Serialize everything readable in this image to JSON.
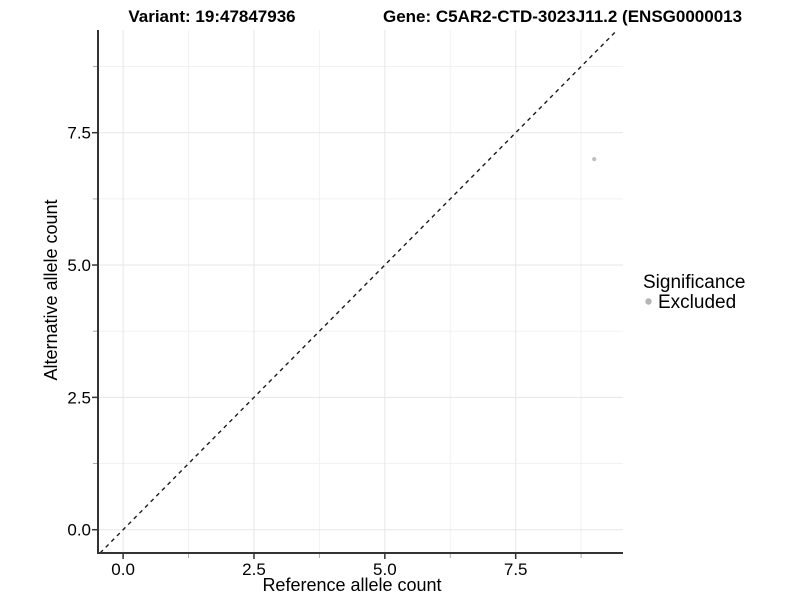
{
  "chart_data": {
    "type": "scatter",
    "titles": {
      "variant": "Variant: 19:47847936",
      "gene": "Gene: C5AR2-CTD-3023J11.2 (ENSG0000013"
    },
    "xlabel": "Reference allele count",
    "ylabel": "Alternative allele count",
    "xlim": [
      -0.48,
      9.55
    ],
    "ylim": [
      -0.44,
      9.44
    ],
    "x_ticks": [
      0,
      2.5,
      5,
      7.5
    ],
    "x_tick_labels": [
      "0.0",
      "2.5",
      "5.0",
      "7.5"
    ],
    "y_ticks": [
      0,
      2.5,
      5,
      7.5
    ],
    "y_tick_labels": [
      "0.0",
      "2.5",
      "5.0",
      "7.5"
    ],
    "minor_ticks": [
      1.25,
      3.75,
      6.25,
      8.75
    ],
    "grid": {
      "show": true,
      "major_color": "#e7e7e7",
      "minor_color": "#f2f2f2"
    },
    "identity_line": {
      "style": "dashed",
      "color": "#1a1a1a",
      "from": -0.44,
      "to": 9.44
    },
    "series": [
      {
        "name": "Excluded",
        "color": "#c0c0c0",
        "point_radius": 2.1,
        "points": [
          [
            9,
            7
          ]
        ]
      }
    ],
    "legend": {
      "title": "Significance",
      "position": "right",
      "items": [
        {
          "label": "Excluded",
          "color": "#b5b5b5"
        }
      ]
    }
  },
  "colors": {
    "axis": "#333333",
    "minor_tick": "#aaaaaa",
    "text": "#000000",
    "background": "#ffffff"
  }
}
